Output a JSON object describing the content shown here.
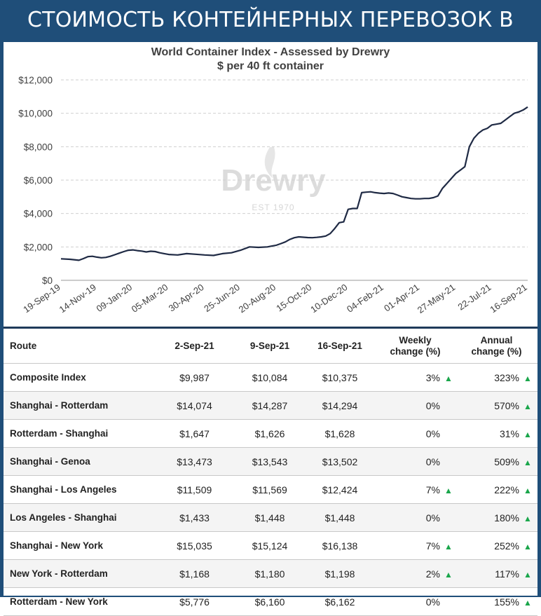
{
  "banner": {
    "title": "СТОИМОСТЬ КОНТЕЙНЕРНЫХ ПЕРЕВОЗОК В МИРЕ"
  },
  "chart_data": {
    "type": "line",
    "title": "World Container Index - Assessed by Drewry",
    "subtitle": "$ per 40 ft container",
    "watermark": "Drewry",
    "watermark_sub": "EST 1970",
    "line_color": "#1f2a44",
    "ylim": [
      0,
      12000
    ],
    "y_ticks": [
      0,
      2000,
      4000,
      6000,
      8000,
      10000,
      12000
    ],
    "y_tick_labels": [
      "$0",
      "$2,000",
      "$4,000",
      "$6,000",
      "$8,000",
      "$10,000",
      "$12,000"
    ],
    "x_tick_labels": [
      "19-Sep-19",
      "14-Nov-19",
      "09-Jan-20",
      "05-Mar-20",
      "30-Apr-20",
      "25-Jun-20",
      "20-Aug-20",
      "15-Oct-20",
      "10-Dec-20",
      "04-Feb-21",
      "01-Apr-21",
      "27-May-21",
      "22-Jul-21",
      "16-Sep-21"
    ],
    "x_range": [
      0,
      104
    ],
    "grid": "horizontal-dashed",
    "series": [
      {
        "x": [
          0,
          2,
          4,
          5,
          6,
          7,
          8,
          9,
          10,
          11,
          12,
          13,
          14,
          15,
          16,
          17,
          18,
          19,
          20,
          21,
          22,
          23,
          24,
          26,
          28,
          30,
          32,
          34,
          36,
          38,
          40,
          42,
          44,
          46,
          47,
          48,
          49,
          50,
          51,
          52,
          53,
          54,
          55,
          56,
          57,
          58,
          59,
          60,
          61,
          62,
          63,
          64,
          65,
          66,
          67,
          68,
          69,
          70,
          71,
          72,
          73,
          74,
          75,
          76,
          77,
          78,
          79,
          80,
          81,
          82,
          83,
          84,
          85,
          86,
          87,
          88,
          89,
          90,
          91,
          92,
          93,
          94,
          95,
          96,
          97,
          98,
          99,
          100,
          101,
          102,
          103,
          104
        ],
        "y": [
          1290,
          1260,
          1200,
          1300,
          1420,
          1440,
          1390,
          1350,
          1370,
          1440,
          1530,
          1630,
          1720,
          1800,
          1820,
          1780,
          1750,
          1700,
          1740,
          1720,
          1650,
          1600,
          1550,
          1520,
          1600,
          1560,
          1520,
          1490,
          1600,
          1650,
          1800,
          2000,
          1970,
          2000,
          2050,
          2100,
          2200,
          2300,
          2450,
          2550,
          2600,
          2580,
          2560,
          2550,
          2570,
          2600,
          2650,
          2800,
          3100,
          3450,
          3500,
          4250,
          4300,
          4300,
          5250,
          5280,
          5300,
          5250,
          5220,
          5200,
          5230,
          5200,
          5100,
          5000,
          4950,
          4900,
          4880,
          4880,
          4900,
          4900,
          4950,
          5050,
          5500,
          5800,
          6100,
          6400,
          6600,
          6800,
          8000,
          8500,
          8800,
          9000,
          9100,
          9300,
          9350,
          9400,
          9600,
          9800,
          10000,
          10084,
          10200,
          10375
        ]
      }
    ]
  },
  "table": {
    "headers": {
      "route": "Route",
      "c1": "2-Sep-21",
      "c2": "9-Sep-21",
      "c3": "16-Sep-21",
      "weekly_1": "Weekly",
      "weekly_2": "change (%)",
      "annual_1": "Annual",
      "annual_2": "change (%)"
    },
    "rows": [
      {
        "route": "Composite Index",
        "c1": "$9,987",
        "c2": "$10,084",
        "c3": "$10,375",
        "weekly": "3%",
        "weekly_up": "▲",
        "annual": "323%",
        "annual_up": "▲"
      },
      {
        "route": "Shanghai - Rotterdam",
        "c1": "$14,074",
        "c2": "$14,287",
        "c3": "$14,294",
        "weekly": "0%",
        "weekly_up": "",
        "annual": "570%",
        "annual_up": "▲"
      },
      {
        "route": "Rotterdam - Shanghai",
        "c1": "$1,647",
        "c2": "$1,626",
        "c3": "$1,628",
        "weekly": "0%",
        "weekly_up": "",
        "annual": "31%",
        "annual_up": "▲"
      },
      {
        "route": "Shanghai - Genoa",
        "c1": "$13,473",
        "c2": "$13,543",
        "c3": "$13,502",
        "weekly": "0%",
        "weekly_up": "",
        "annual": "509%",
        "annual_up": "▲"
      },
      {
        "route": "Shanghai - Los Angeles",
        "c1": "$11,509",
        "c2": "$11,569",
        "c3": "$12,424",
        "weekly": "7%",
        "weekly_up": "▲",
        "annual": "222%",
        "annual_up": "▲"
      },
      {
        "route": "Los Angeles - Shanghai",
        "c1": "$1,433",
        "c2": "$1,448",
        "c3": "$1,448",
        "weekly": "0%",
        "weekly_up": "",
        "annual": "180%",
        "annual_up": "▲"
      },
      {
        "route": "Shanghai - New York",
        "c1": "$15,035",
        "c2": "$15,124",
        "c3": "$16,138",
        "weekly": "7%",
        "weekly_up": "▲",
        "annual": "252%",
        "annual_up": "▲"
      },
      {
        "route": "New York - Rotterdam",
        "c1": "$1,168",
        "c2": "$1,180",
        "c3": "$1,198",
        "weekly": "2%",
        "weekly_up": "▲",
        "annual": "117%",
        "annual_up": "▲"
      },
      {
        "route": "Rotterdam - New York",
        "c1": "$5,776",
        "c2": "$6,160",
        "c3": "$6,162",
        "weekly": "0%",
        "weekly_up": "",
        "annual": "155%",
        "annual_up": "▲"
      }
    ]
  }
}
